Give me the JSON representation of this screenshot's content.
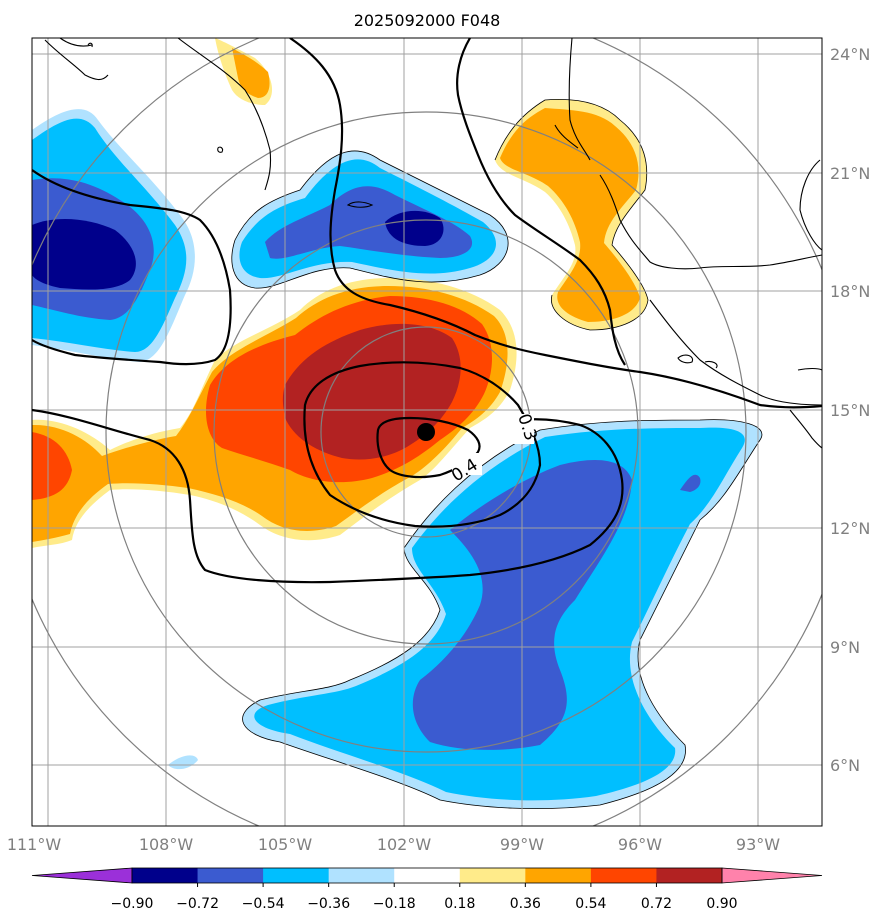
{
  "title": "2025092000 F048",
  "lon_ticks": [
    "111°W",
    "108°W",
    "105°W",
    "102°W",
    "99°W",
    "96°W",
    "93°W"
  ],
  "lat_ticks": [
    "24°N",
    "21°N",
    "18°N",
    "15°N",
    "12°N",
    "9°N",
    "6°N"
  ],
  "colorbar": {
    "ticks": [
      "−0.90",
      "−0.72",
      "−0.54",
      "−0.36",
      "−0.18",
      "0.18",
      "0.36",
      "0.54",
      "0.72",
      "0.90"
    ],
    "colors": [
      "#9b30d9",
      "#00008b",
      "#3b5bd0",
      "#00bfff",
      "#b0e2ff",
      "#ffffff",
      "#ffeb8a",
      "#ffa500",
      "#ff4500",
      "#b22222",
      "#ff82ab"
    ]
  },
  "contour_labels": [
    "0.3",
    "0.4"
  ],
  "colors": {
    "grid": "#a0a0a0",
    "range_rings": "#808080",
    "coast": "#000000",
    "storm_center": "#000000"
  },
  "chart_data": {
    "type": "heatmap",
    "title": "2025092000 F048",
    "xlim": [
      -111.5,
      -91.5
    ],
    "ylim": [
      4.5,
      24.5
    ],
    "x_ticks": [
      -111,
      -108,
      -105,
      -102,
      -99,
      -96,
      -93
    ],
    "y_ticks": [
      24,
      21,
      18,
      15,
      12,
      9,
      6
    ],
    "colorbar_levels": [
      -0.9,
      -0.72,
      -0.54,
      -0.36,
      -0.18,
      0.18,
      0.36,
      0.54,
      0.72,
      0.9
    ],
    "colorbar_extend": "both",
    "storm_center": {
      "lon": -101.0,
      "lat": 14.5
    },
    "contour_levels_labeled": [
      0.3,
      0.4
    ],
    "grid": true
  }
}
